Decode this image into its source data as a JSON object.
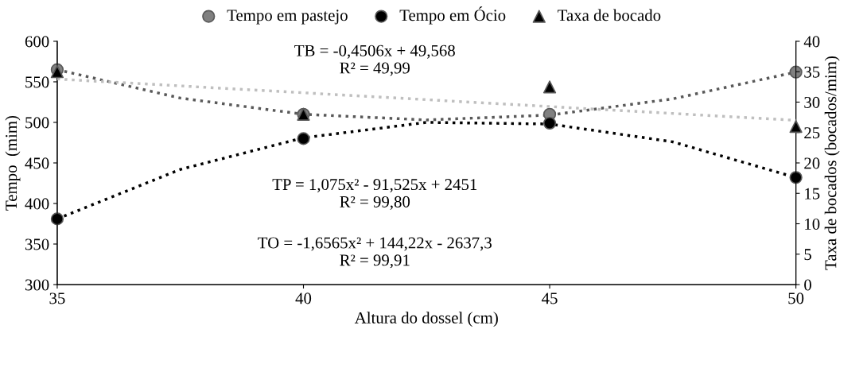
{
  "chart_data": {
    "type": "scatter",
    "xlabel": "Altura do dossel (cm)",
    "ylabel": "Tempo  (mim)",
    "y2label": "Taxa de bocados (bocados/mim)",
    "x": [
      35,
      40,
      45,
      50
    ],
    "xlim": [
      35,
      50
    ],
    "xticks": [
      35,
      40,
      45,
      50
    ],
    "ylim": [
      300,
      600
    ],
    "yticks": [
      300,
      350,
      400,
      450,
      500,
      550,
      600
    ],
    "y2lim": [
      0,
      40
    ],
    "y2ticks": [
      0,
      5,
      10,
      15,
      20,
      25,
      30,
      35,
      40
    ],
    "grid": false,
    "legend": "top",
    "series": [
      {
        "name": "Tempo em pastejo",
        "marker": "circle",
        "color": "#808080",
        "values": [
          565,
          510,
          510,
          562
        ]
      },
      {
        "name": "Tempo em Ócio",
        "marker": "circle",
        "color": "#000000",
        "values": [
          381,
          480,
          499,
          432
        ]
      },
      {
        "name": "Taxa de bocado",
        "marker": "triangle",
        "color": "#000000",
        "axis": "y2",
        "values": [
          35,
          28,
          32.5,
          26
        ]
      },
      {
        "type": "line",
        "line_style": "dotted",
        "color": "#595959",
        "x": [
          35,
          37.5,
          40,
          42.5,
          45,
          47.5,
          50
        ],
        "values": [
          565,
          530,
          510,
          503,
          509,
          529,
          562
        ]
      },
      {
        "type": "line",
        "line_style": "dotted",
        "color": "#000000",
        "x": [
          35,
          37.5,
          40,
          42.5,
          45,
          47.5,
          50
        ],
        "values": [
          381,
          442,
          481,
          500,
          498,
          476,
          432
        ]
      },
      {
        "type": "line",
        "line_style": "dotted",
        "color": "#bfbfbf",
        "axis": "y2",
        "x": [
          35,
          50
        ],
        "values": [
          33.8,
          27
        ]
      }
    ],
    "annotations": [
      "TB = -0,4506x + 49,568\nR² = 49,99",
      "TP = 1,075x² - 91,525x + 2451\nR² = 99,80",
      "TO = -1,6565x² + 144,22x - 2637,3\nR² = 99,91"
    ]
  }
}
